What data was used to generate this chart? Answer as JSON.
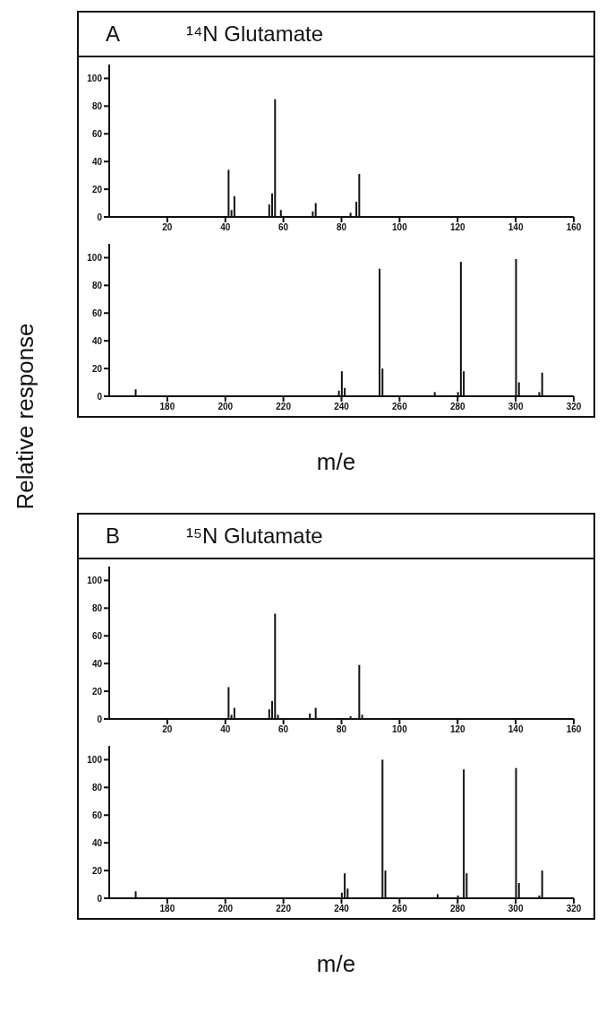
{
  "chart_data": [
    {
      "type": "bar",
      "title": "A",
      "subtitle": "¹⁴N Glutamate",
      "color": "#111111",
      "xlim": [
        0,
        160
      ],
      "xticks": [
        20,
        40,
        60,
        80,
        100,
        120,
        140,
        160
      ],
      "ylim": [
        0,
        110
      ],
      "yticks": [
        0,
        20,
        40,
        60,
        80,
        100
      ],
      "x": [
        41,
        42,
        43,
        55,
        56,
        57,
        59,
        70,
        71,
        83,
        85,
        86
      ],
      "values": [
        34,
        5,
        15,
        9,
        17,
        85,
        5,
        4,
        10,
        3,
        11,
        31
      ]
    },
    {
      "type": "bar",
      "xlabel": "m/e",
      "ylabel": "Relative response",
      "color": "#111111",
      "xlim": [
        160,
        320
      ],
      "xticks": [
        180,
        200,
        220,
        240,
        260,
        280,
        300,
        320
      ],
      "ylim": [
        0,
        110
      ],
      "yticks": [
        0,
        20,
        40,
        60,
        80,
        100
      ],
      "x": [
        169,
        239,
        240,
        241,
        253,
        254,
        272,
        280,
        281,
        282,
        300,
        301,
        308,
        309
      ],
      "values": [
        5,
        4,
        18,
        6,
        92,
        20,
        3,
        3,
        97,
        18,
        99,
        10,
        3,
        17
      ]
    },
    {
      "type": "bar",
      "title": "B",
      "subtitle": "¹⁵N Glutamate",
      "color": "#111111",
      "xlim": [
        0,
        160
      ],
      "xticks": [
        20,
        40,
        60,
        80,
        100,
        120,
        140,
        160
      ],
      "ylim": [
        0,
        110
      ],
      "yticks": [
        0,
        20,
        40,
        60,
        80,
        100
      ],
      "x": [
        41,
        42,
        43,
        55,
        56,
        57,
        58,
        69,
        71,
        83,
        86,
        87
      ],
      "values": [
        23,
        3,
        8,
        7,
        13,
        76,
        3,
        4,
        8,
        2,
        39,
        3
      ]
    },
    {
      "type": "bar",
      "xlabel": "m/e",
      "color": "#111111",
      "xlim": [
        160,
        320
      ],
      "xticks": [
        180,
        200,
        220,
        240,
        260,
        280,
        300,
        320
      ],
      "ylim": [
        0,
        110
      ],
      "yticks": [
        0,
        20,
        40,
        60,
        80,
        100
      ],
      "x": [
        169,
        240,
        241,
        242,
        254,
        255,
        273,
        280,
        282,
        283,
        300,
        301,
        308,
        309
      ],
      "values": [
        5,
        4,
        18,
        7,
        100,
        20,
        3,
        2,
        93,
        18,
        94,
        11,
        2,
        20
      ]
    }
  ]
}
